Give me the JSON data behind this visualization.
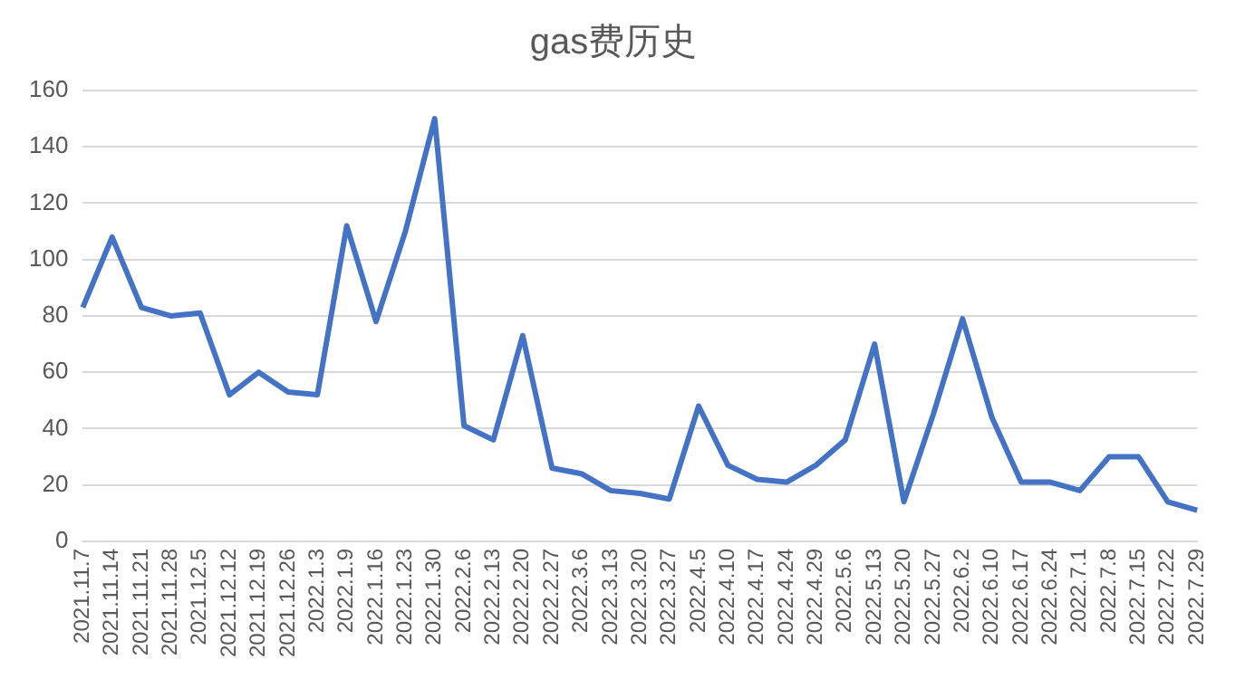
{
  "chart_data": {
    "type": "line",
    "title": "gas费历史",
    "categories": [
      "2021.11.7",
      "2021.11.14",
      "2021.11.21",
      "2021.11.28",
      "2021.12.5",
      "2021.12.12",
      "2021.12.19",
      "2021.12.26",
      "2022.1.3",
      "2022.1.9",
      "2022.1.16",
      "2022.1.23",
      "2022.1.30",
      "2022.2.6",
      "2022.2.13",
      "2022.2.20",
      "2022.2.27",
      "2022.3.6",
      "2022.3.13",
      "2022.3.20",
      "2022.3.27",
      "2022.4.5",
      "2022.4.10",
      "2022.4.17",
      "2022.4.24",
      "2022.4.29",
      "2022.5.6",
      "2022.5.13",
      "2022.5.20",
      "2022.5.27",
      "2022.6.2",
      "2022.6.10",
      "2022.6.17",
      "2022.6.24",
      "2022.7.1",
      "2022.7.8",
      "2022.7.15",
      "2022.7.22",
      "2022.7.29"
    ],
    "series": [
      {
        "color": "#4472c4",
        "values": [
          83,
          108,
          83,
          80,
          81,
          52,
          60,
          53,
          52,
          112,
          78,
          110,
          150,
          41,
          36,
          73,
          26,
          24,
          18,
          17,
          15,
          48,
          27,
          22,
          21,
          27,
          36,
          70,
          14,
          45,
          79,
          44,
          21,
          21,
          18,
          30,
          30,
          14,
          11
        ]
      }
    ],
    "ylim": [
      0,
      160
    ],
    "yticks": [
      0,
      20,
      40,
      60,
      80,
      100,
      120,
      140,
      160
    ],
    "grid": "y",
    "legend": false,
    "marker": "none",
    "line_style": "solid"
  }
}
